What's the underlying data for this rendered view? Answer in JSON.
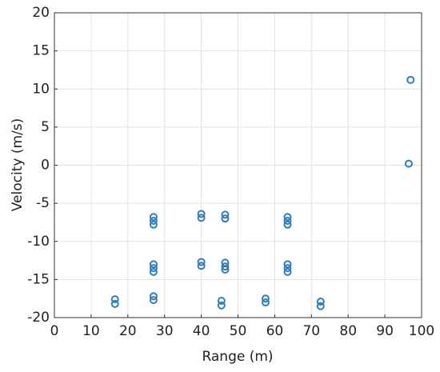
{
  "chart_data": {
    "type": "scatter",
    "xlabel": "Range  (m)",
    "ylabel": "Velocity  (m/s)",
    "color": "#2e7ebf",
    "x": [
      16.5,
      16.5,
      27,
      27,
      27,
      27,
      27,
      27,
      27,
      27,
      40,
      40,
      40,
      40,
      46.5,
      46.5,
      46.5,
      46.5,
      46.5,
      45.5,
      45.5,
      63.5,
      63.5,
      63.5,
      63.5,
      63.5,
      63.5,
      57.5,
      57.5,
      72.5,
      72.5,
      97,
      96.5
    ],
    "values": [
      -17.6,
      -18.2,
      -6.8,
      -7.3,
      -7.8,
      -13,
      -13.5,
      -14,
      -17.2,
      -17.7,
      -6.4,
      -6.9,
      -12.7,
      -13.2,
      -6.5,
      -7,
      -12.8,
      -13.3,
      -13.7,
      -17.8,
      -18.4,
      -6.8,
      -7.3,
      -7.8,
      -13,
      -13.5,
      -14,
      -17.5,
      -18,
      -17.9,
      -18.5,
      11.2,
      0.2
    ],
    "xlim": [
      0,
      100
    ],
    "xticks": [
      0,
      10,
      20,
      30,
      40,
      50,
      60,
      70,
      80,
      90,
      100
    ],
    "ylim": [
      -20,
      20
    ],
    "yticks": [
      -20,
      -15,
      -10,
      -5,
      0,
      5,
      10,
      15,
      20
    ],
    "grid": true
  }
}
